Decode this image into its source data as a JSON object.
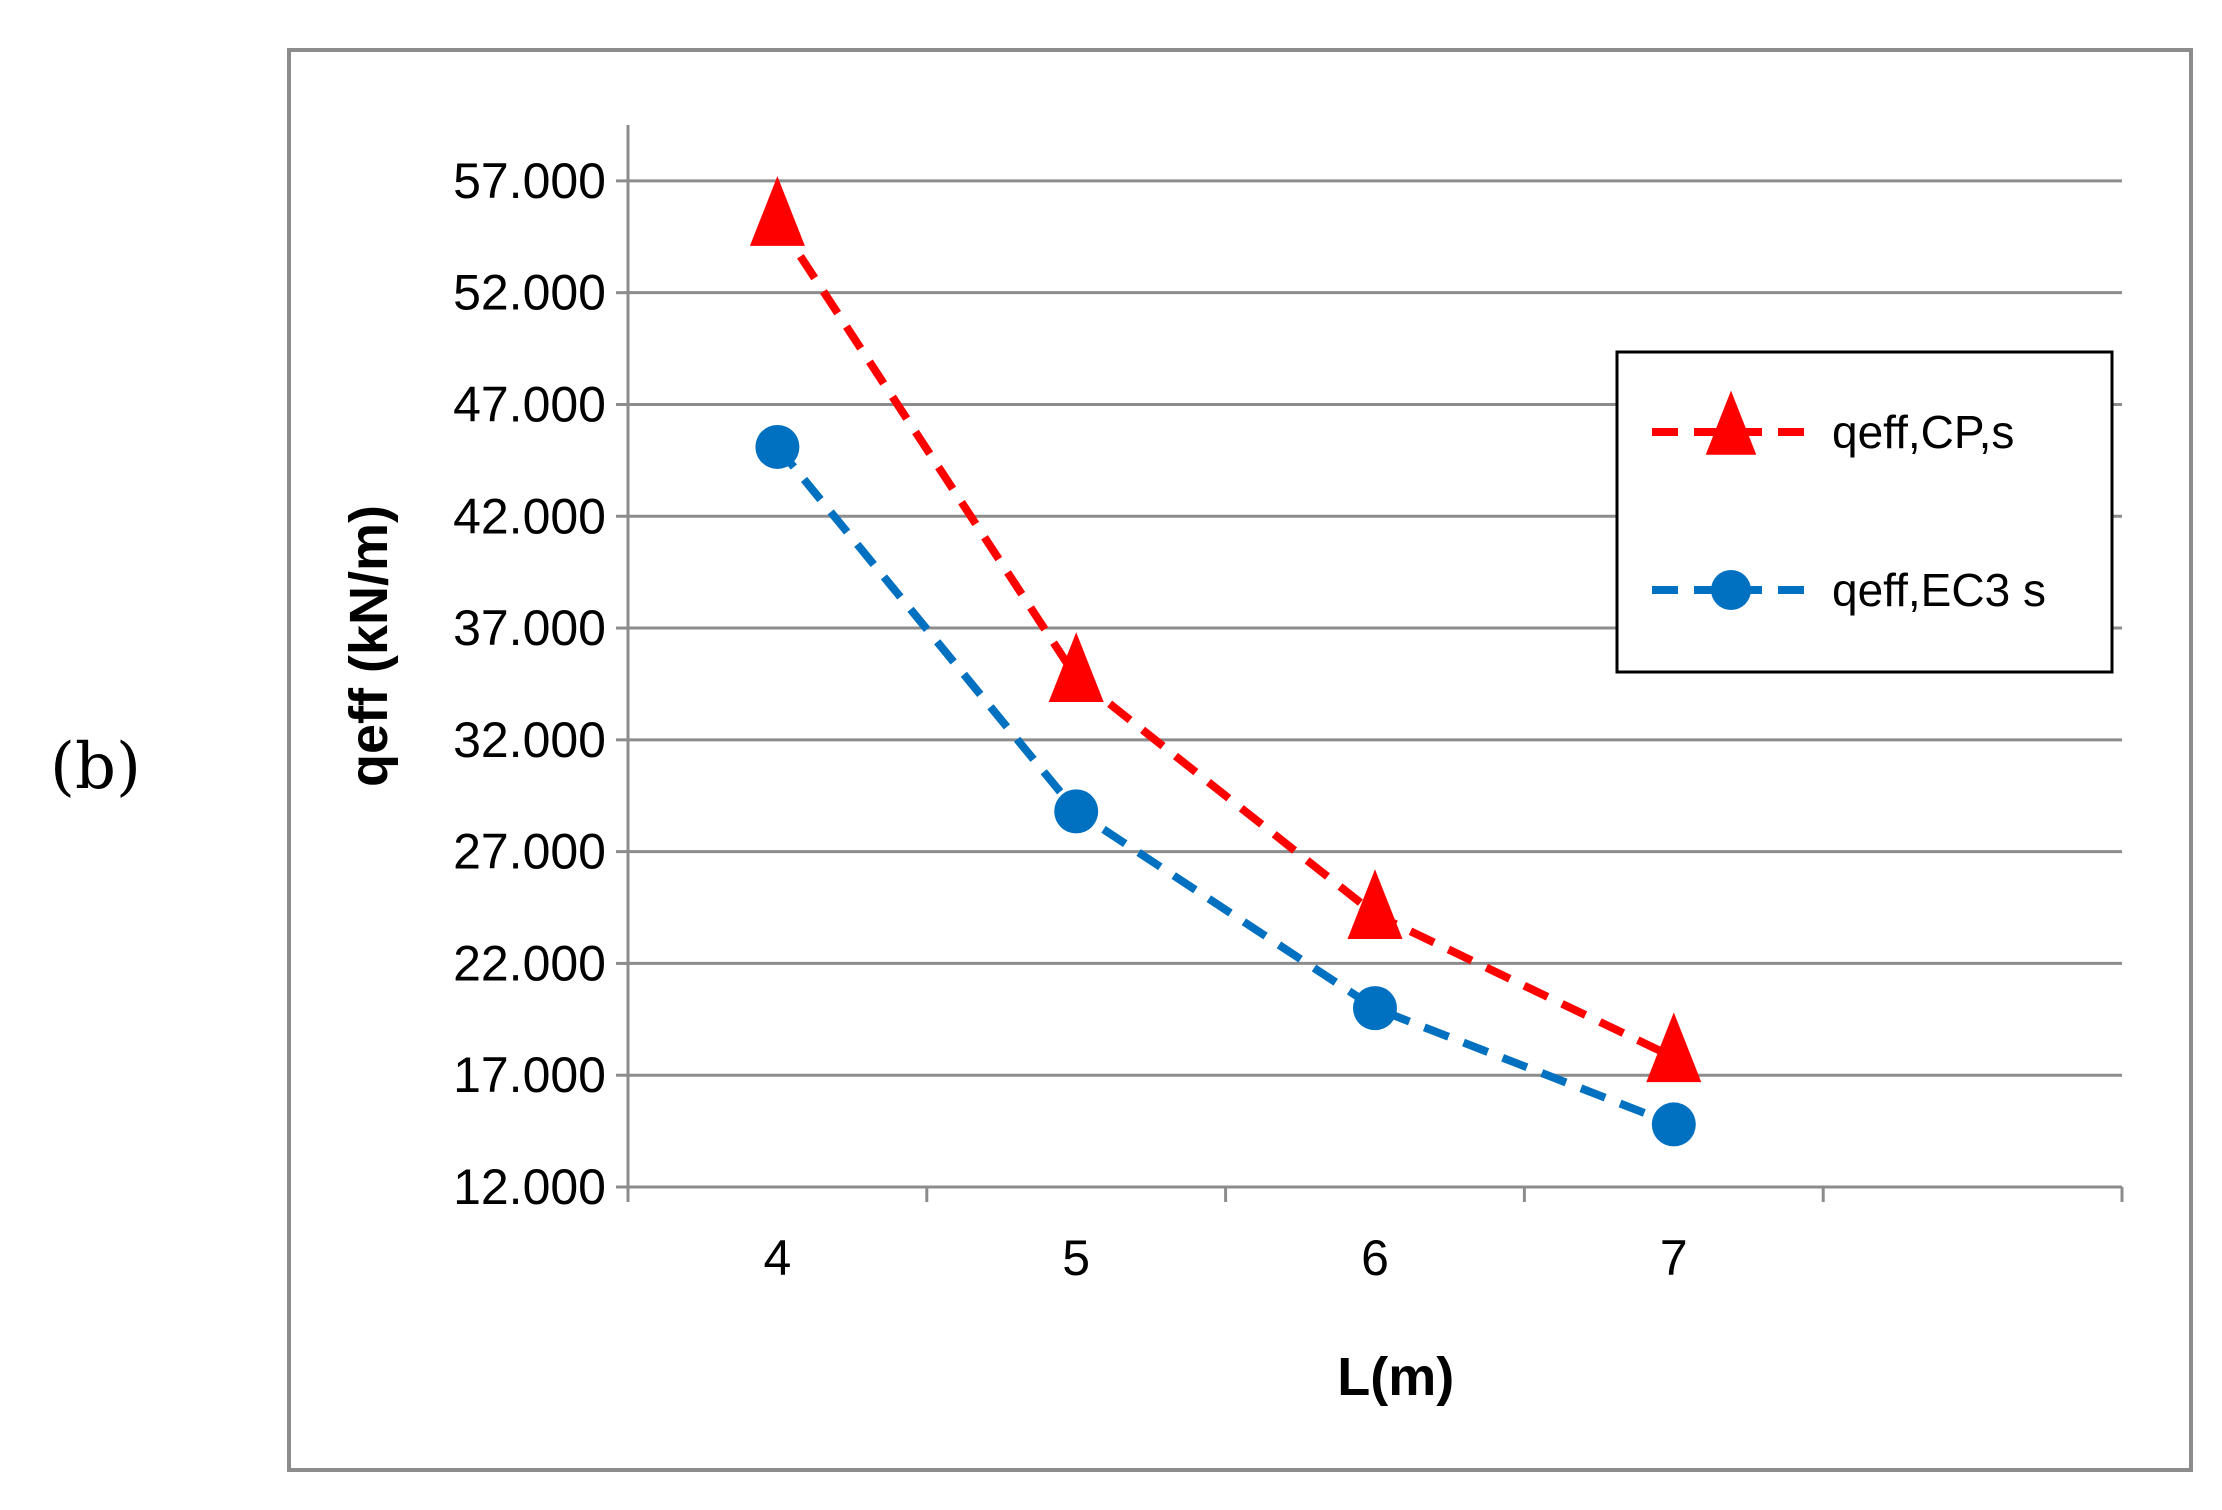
{
  "panel_label": "(b)",
  "chart_data": {
    "type": "line",
    "x": [
      4,
      5,
      6,
      7
    ],
    "xlabel": "L(m)",
    "ylabel": "qeff (kN/m)",
    "yticks": [
      "12.000",
      "17.000",
      "22.000",
      "27.000",
      "32.000",
      "37.000",
      "42.000",
      "47.000",
      "52.000",
      "57.000"
    ],
    "xticks": [
      "4",
      "5",
      "6",
      "7"
    ],
    "ylim": [
      12,
      60
    ],
    "grid": "horizontal",
    "legend_position": "right",
    "series": [
      {
        "name": "qeff,CP,s",
        "values": [
          55.2,
          34.8,
          24.2,
          17.8
        ],
        "color": "#ff0000",
        "marker": "triangle",
        "linestyle": "dashed"
      },
      {
        "name": "qeff,EC3 s",
        "values": [
          45.1,
          28.8,
          20.0,
          14.8
        ],
        "color": "#0070c0",
        "marker": "circle",
        "linestyle": "dashed"
      }
    ]
  }
}
